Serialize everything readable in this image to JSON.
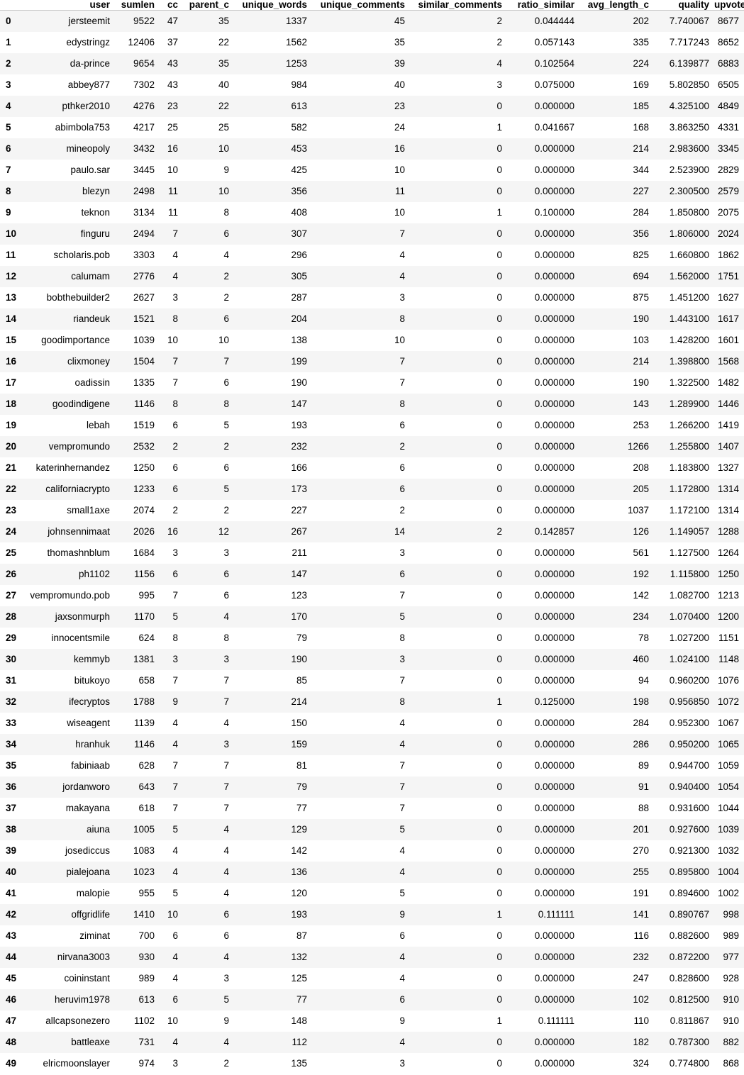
{
  "table": {
    "columns": [
      "user",
      "sumlen",
      "cc",
      "parent_c",
      "unique_words",
      "unique_comments",
      "similar_comments",
      "ratio_similar",
      "avg_length_c",
      "quality",
      "upvote"
    ],
    "rows": [
      {
        "index": "0",
        "cells": [
          "jersteemit",
          "9522",
          "47",
          "35",
          "1337",
          "45",
          "2",
          "0.044444",
          "202",
          "7.740067",
          "8677"
        ]
      },
      {
        "index": "1",
        "cells": [
          "edystringz",
          "12406",
          "37",
          "22",
          "1562",
          "35",
          "2",
          "0.057143",
          "335",
          "7.717243",
          "8652"
        ]
      },
      {
        "index": "2",
        "cells": [
          "da-prince",
          "9654",
          "43",
          "35",
          "1253",
          "39",
          "4",
          "0.102564",
          "224",
          "6.139877",
          "6883"
        ]
      },
      {
        "index": "3",
        "cells": [
          "abbey877",
          "7302",
          "43",
          "40",
          "984",
          "40",
          "3",
          "0.075000",
          "169",
          "5.802850",
          "6505"
        ]
      },
      {
        "index": "4",
        "cells": [
          "pthker2010",
          "4276",
          "23",
          "22",
          "613",
          "23",
          "0",
          "0.000000",
          "185",
          "4.325100",
          "4849"
        ]
      },
      {
        "index": "5",
        "cells": [
          "abimbola753",
          "4217",
          "25",
          "25",
          "582",
          "24",
          "1",
          "0.041667",
          "168",
          "3.863250",
          "4331"
        ]
      },
      {
        "index": "6",
        "cells": [
          "mineopoly",
          "3432",
          "16",
          "10",
          "453",
          "16",
          "0",
          "0.000000",
          "214",
          "2.983600",
          "3345"
        ]
      },
      {
        "index": "7",
        "cells": [
          "paulo.sar",
          "3445",
          "10",
          "9",
          "425",
          "10",
          "0",
          "0.000000",
          "344",
          "2.523900",
          "2829"
        ]
      },
      {
        "index": "8",
        "cells": [
          "blezyn",
          "2498",
          "11",
          "10",
          "356",
          "11",
          "0",
          "0.000000",
          "227",
          "2.300500",
          "2579"
        ]
      },
      {
        "index": "9",
        "cells": [
          "teknon",
          "3134",
          "11",
          "8",
          "408",
          "10",
          "1",
          "0.100000",
          "284",
          "1.850800",
          "2075"
        ]
      },
      {
        "index": "10",
        "cells": [
          "finguru",
          "2494",
          "7",
          "6",
          "307",
          "7",
          "0",
          "0.000000",
          "356",
          "1.806000",
          "2024"
        ]
      },
      {
        "index": "11",
        "cells": [
          "scholaris.pob",
          "3303",
          "4",
          "4",
          "296",
          "4",
          "0",
          "0.000000",
          "825",
          "1.660800",
          "1862"
        ]
      },
      {
        "index": "12",
        "cells": [
          "calumam",
          "2776",
          "4",
          "2",
          "305",
          "4",
          "0",
          "0.000000",
          "694",
          "1.562000",
          "1751"
        ]
      },
      {
        "index": "13",
        "cells": [
          "bobthebuilder2",
          "2627",
          "3",
          "2",
          "287",
          "3",
          "0",
          "0.000000",
          "875",
          "1.451200",
          "1627"
        ]
      },
      {
        "index": "14",
        "cells": [
          "riandeuk",
          "1521",
          "8",
          "6",
          "204",
          "8",
          "0",
          "0.000000",
          "190",
          "1.443100",
          "1617"
        ]
      },
      {
        "index": "15",
        "cells": [
          "goodimportance",
          "1039",
          "10",
          "10",
          "138",
          "10",
          "0",
          "0.000000",
          "103",
          "1.428200",
          "1601"
        ]
      },
      {
        "index": "16",
        "cells": [
          "clixmoney",
          "1504",
          "7",
          "7",
          "199",
          "7",
          "0",
          "0.000000",
          "214",
          "1.398800",
          "1568"
        ]
      },
      {
        "index": "17",
        "cells": [
          "oadissin",
          "1335",
          "7",
          "6",
          "190",
          "7",
          "0",
          "0.000000",
          "190",
          "1.322500",
          "1482"
        ]
      },
      {
        "index": "18",
        "cells": [
          "goodindigene",
          "1146",
          "8",
          "8",
          "147",
          "8",
          "0",
          "0.000000",
          "143",
          "1.289900",
          "1446"
        ]
      },
      {
        "index": "19",
        "cells": [
          "lebah",
          "1519",
          "6",
          "5",
          "193",
          "6",
          "0",
          "0.000000",
          "253",
          "1.266200",
          "1419"
        ]
      },
      {
        "index": "20",
        "cells": [
          "vempromundo",
          "2532",
          "2",
          "2",
          "232",
          "2",
          "0",
          "0.000000",
          "1266",
          "1.255800",
          "1407"
        ]
      },
      {
        "index": "21",
        "cells": [
          "katerinhernandez",
          "1250",
          "6",
          "6",
          "166",
          "6",
          "0",
          "0.000000",
          "208",
          "1.183800",
          "1327"
        ]
      },
      {
        "index": "22",
        "cells": [
          "californiacrypto",
          "1233",
          "6",
          "5",
          "173",
          "6",
          "0",
          "0.000000",
          "205",
          "1.172800",
          "1314"
        ]
      },
      {
        "index": "23",
        "cells": [
          "small1axe",
          "2074",
          "2",
          "2",
          "227",
          "2",
          "0",
          "0.000000",
          "1037",
          "1.172100",
          "1314"
        ]
      },
      {
        "index": "24",
        "cells": [
          "johnsennimaat",
          "2026",
          "16",
          "12",
          "267",
          "14",
          "2",
          "0.142857",
          "126",
          "1.149057",
          "1288"
        ]
      },
      {
        "index": "25",
        "cells": [
          "thomashnblum",
          "1684",
          "3",
          "3",
          "211",
          "3",
          "0",
          "0.000000",
          "561",
          "1.127500",
          "1264"
        ]
      },
      {
        "index": "26",
        "cells": [
          "ph1102",
          "1156",
          "6",
          "6",
          "147",
          "6",
          "0",
          "0.000000",
          "192",
          "1.115800",
          "1250"
        ]
      },
      {
        "index": "27",
        "cells": [
          "vempromundo.pob",
          "995",
          "7",
          "6",
          "123",
          "7",
          "0",
          "0.000000",
          "142",
          "1.082700",
          "1213"
        ]
      },
      {
        "index": "28",
        "cells": [
          "jaxsonmurph",
          "1170",
          "5",
          "4",
          "170",
          "5",
          "0",
          "0.000000",
          "234",
          "1.070400",
          "1200"
        ]
      },
      {
        "index": "29",
        "cells": [
          "innocentsmile",
          "624",
          "8",
          "8",
          "79",
          "8",
          "0",
          "0.000000",
          "78",
          "1.027200",
          "1151"
        ]
      },
      {
        "index": "30",
        "cells": [
          "kemmyb",
          "1381",
          "3",
          "3",
          "190",
          "3",
          "0",
          "0.000000",
          "460",
          "1.024100",
          "1148"
        ]
      },
      {
        "index": "31",
        "cells": [
          "bitukoyo",
          "658",
          "7",
          "7",
          "85",
          "7",
          "0",
          "0.000000",
          "94",
          "0.960200",
          "1076"
        ]
      },
      {
        "index": "32",
        "cells": [
          "ifecryptos",
          "1788",
          "9",
          "7",
          "214",
          "8",
          "1",
          "0.125000",
          "198",
          "0.956850",
          "1072"
        ]
      },
      {
        "index": "33",
        "cells": [
          "wiseagent",
          "1139",
          "4",
          "4",
          "150",
          "4",
          "0",
          "0.000000",
          "284",
          "0.952300",
          "1067"
        ]
      },
      {
        "index": "34",
        "cells": [
          "hranhuk",
          "1146",
          "4",
          "3",
          "159",
          "4",
          "0",
          "0.000000",
          "286",
          "0.950200",
          "1065"
        ]
      },
      {
        "index": "35",
        "cells": [
          "fabiniaab",
          "628",
          "7",
          "7",
          "81",
          "7",
          "0",
          "0.000000",
          "89",
          "0.944700",
          "1059"
        ]
      },
      {
        "index": "36",
        "cells": [
          "jordanworo",
          "643",
          "7",
          "7",
          "79",
          "7",
          "0",
          "0.000000",
          "91",
          "0.940400",
          "1054"
        ]
      },
      {
        "index": "37",
        "cells": [
          "makayana",
          "618",
          "7",
          "7",
          "77",
          "7",
          "0",
          "0.000000",
          "88",
          "0.931600",
          "1044"
        ]
      },
      {
        "index": "38",
        "cells": [
          "aiuna",
          "1005",
          "5",
          "4",
          "129",
          "5",
          "0",
          "0.000000",
          "201",
          "0.927600",
          "1039"
        ]
      },
      {
        "index": "39",
        "cells": [
          "josediccus",
          "1083",
          "4",
          "4",
          "142",
          "4",
          "0",
          "0.000000",
          "270",
          "0.921300",
          "1032"
        ]
      },
      {
        "index": "40",
        "cells": [
          "pialejoana",
          "1023",
          "4",
          "4",
          "136",
          "4",
          "0",
          "0.000000",
          "255",
          "0.895800",
          "1004"
        ]
      },
      {
        "index": "41",
        "cells": [
          "malopie",
          "955",
          "5",
          "4",
          "120",
          "5",
          "0",
          "0.000000",
          "191",
          "0.894600",
          "1002"
        ]
      },
      {
        "index": "42",
        "cells": [
          "offgridlife",
          "1410",
          "10",
          "6",
          "193",
          "9",
          "1",
          "0.111111",
          "141",
          "0.890767",
          "998"
        ]
      },
      {
        "index": "43",
        "cells": [
          "ziminat",
          "700",
          "6",
          "6",
          "87",
          "6",
          "0",
          "0.000000",
          "116",
          "0.882600",
          "989"
        ]
      },
      {
        "index": "44",
        "cells": [
          "nirvana3003",
          "930",
          "4",
          "4",
          "132",
          "4",
          "0",
          "0.000000",
          "232",
          "0.872200",
          "977"
        ]
      },
      {
        "index": "45",
        "cells": [
          "coininstant",
          "989",
          "4",
          "3",
          "125",
          "4",
          "0",
          "0.000000",
          "247",
          "0.828600",
          "928"
        ]
      },
      {
        "index": "46",
        "cells": [
          "heruvim1978",
          "613",
          "6",
          "5",
          "77",
          "6",
          "0",
          "0.000000",
          "102",
          "0.812500",
          "910"
        ]
      },
      {
        "index": "47",
        "cells": [
          "allcapsonezero",
          "1102",
          "10",
          "9",
          "148",
          "9",
          "1",
          "0.111111",
          "110",
          "0.811867",
          "910"
        ]
      },
      {
        "index": "48",
        "cells": [
          "battleaxe",
          "731",
          "4",
          "4",
          "112",
          "4",
          "0",
          "0.000000",
          "182",
          "0.787300",
          "882"
        ]
      },
      {
        "index": "49",
        "cells": [
          "elricmoonslayer",
          "974",
          "3",
          "2",
          "135",
          "3",
          "0",
          "0.000000",
          "324",
          "0.774800",
          "868"
        ]
      }
    ]
  }
}
